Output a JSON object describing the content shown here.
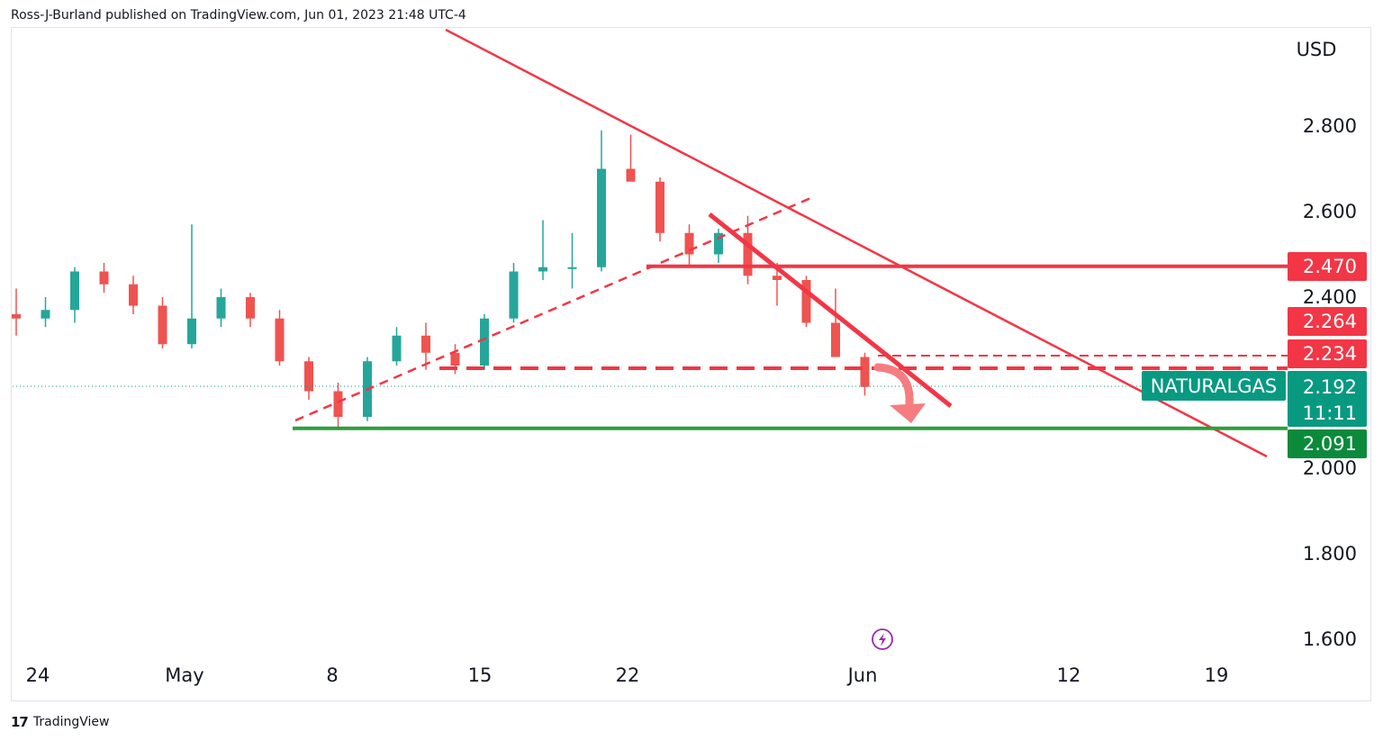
{
  "header": {
    "text": "Ross-J-Burland published on TradingView.com, Jun 01, 2023 21:48 UTC-4"
  },
  "footer": {
    "brand": "TradingView",
    "logo_glyph": "17"
  },
  "colors": {
    "up": "#26a69a",
    "down": "#ef5350",
    "red_line": "#f23645",
    "green_line": "#2e9e3a",
    "symbol_tag": "#089981",
    "support_tag": "#0a8a3a",
    "bolt": "#9c27b0"
  },
  "chart_data": {
    "type": "candlestick",
    "symbol": "NATURALGAS",
    "currency": "USD",
    "last_price": "2.192",
    "countdown": "11:11",
    "y_ticks": [
      "2.800",
      "2.600",
      "2.400",
      "2.000",
      "1.800",
      "1.600"
    ],
    "x_ticks": [
      "24",
      "May",
      "8",
      "15",
      "22",
      "Jun",
      "12",
      "19"
    ],
    "ylim": [
      1.55,
      2.98
    ],
    "levels": [
      {
        "label": "2.470",
        "value": 2.47,
        "style": "solid",
        "color": "red"
      },
      {
        "label": "2.264",
        "value": 2.264,
        "style": "label-only",
        "color": "red"
      },
      {
        "label": "2.234",
        "value": 2.234,
        "style": "dashed",
        "color": "red"
      },
      {
        "label": "2.091",
        "value": 2.091,
        "style": "solid",
        "color": "green"
      }
    ],
    "ohlc_daily": [
      {
        "d": "Apr 21",
        "o": 2.36,
        "h": 2.42,
        "l": 2.31,
        "c": 2.35
      },
      {
        "d": "Apr 24",
        "o": 2.35,
        "h": 2.4,
        "l": 2.33,
        "c": 2.37
      },
      {
        "d": "Apr 25",
        "o": 2.37,
        "h": 2.47,
        "l": 2.34,
        "c": 2.46
      },
      {
        "d": "Apr 26",
        "o": 2.46,
        "h": 2.48,
        "l": 2.41,
        "c": 2.43
      },
      {
        "d": "Apr 27",
        "o": 2.43,
        "h": 2.45,
        "l": 2.36,
        "c": 2.38
      },
      {
        "d": "Apr 28",
        "o": 2.38,
        "h": 2.4,
        "l": 2.28,
        "c": 2.29
      },
      {
        "d": "May 1",
        "o": 2.29,
        "h": 2.57,
        "l": 2.28,
        "c": 2.35
      },
      {
        "d": "May 2",
        "o": 2.35,
        "h": 2.42,
        "l": 2.33,
        "c": 2.4
      },
      {
        "d": "May 3",
        "o": 2.4,
        "h": 2.41,
        "l": 2.33,
        "c": 2.35
      },
      {
        "d": "May 4",
        "o": 2.35,
        "h": 2.37,
        "l": 2.24,
        "c": 2.25
      },
      {
        "d": "May 5",
        "o": 2.25,
        "h": 2.26,
        "l": 2.16,
        "c": 2.18
      },
      {
        "d": "May 8",
        "o": 2.18,
        "h": 2.2,
        "l": 2.09,
        "c": 2.12
      },
      {
        "d": "May 9",
        "o": 2.12,
        "h": 2.26,
        "l": 2.11,
        "c": 2.25
      },
      {
        "d": "May 10",
        "o": 2.25,
        "h": 2.33,
        "l": 2.24,
        "c": 2.31
      },
      {
        "d": "May 11",
        "o": 2.31,
        "h": 2.34,
        "l": 2.23,
        "c": 2.27
      },
      {
        "d": "May 12",
        "o": 2.27,
        "h": 2.29,
        "l": 2.22,
        "c": 2.24
      },
      {
        "d": "May 15",
        "o": 2.24,
        "h": 2.36,
        "l": 2.23,
        "c": 2.35
      },
      {
        "d": "May 16",
        "o": 2.35,
        "h": 2.48,
        "l": 2.34,
        "c": 2.46
      },
      {
        "d": "May 17",
        "o": 2.46,
        "h": 2.58,
        "l": 2.44,
        "c": 2.47
      },
      {
        "d": "May 18",
        "o": 2.47,
        "h": 2.55,
        "l": 2.42,
        "c": 2.47
      },
      {
        "d": "May 19",
        "o": 2.47,
        "h": 2.79,
        "l": 2.46,
        "c": 2.7
      },
      {
        "d": "May 22",
        "o": 2.7,
        "h": 2.78,
        "l": 2.68,
        "c": 2.67
      },
      {
        "d": "May 23",
        "o": 2.67,
        "h": 2.68,
        "l": 2.53,
        "c": 2.55
      },
      {
        "d": "May 24",
        "o": 2.55,
        "h": 2.57,
        "l": 2.47,
        "c": 2.5
      },
      {
        "d": "May 25",
        "o": 2.5,
        "h": 2.56,
        "l": 2.48,
        "c": 2.55
      },
      {
        "d": "May 26",
        "o": 2.55,
        "h": 2.59,
        "l": 2.43,
        "c": 2.45
      },
      {
        "d": "May 29",
        "o": 2.45,
        "h": 2.48,
        "l": 2.38,
        "c": 2.44
      },
      {
        "d": "May 30",
        "o": 2.44,
        "h": 2.45,
        "l": 2.33,
        "c": 2.34
      },
      {
        "d": "May 31",
        "o": 2.34,
        "h": 2.42,
        "l": 2.26,
        "c": 2.26
      },
      {
        "d": "Jun 1",
        "o": 2.26,
        "h": 2.27,
        "l": 2.17,
        "c": 2.19
      }
    ]
  }
}
